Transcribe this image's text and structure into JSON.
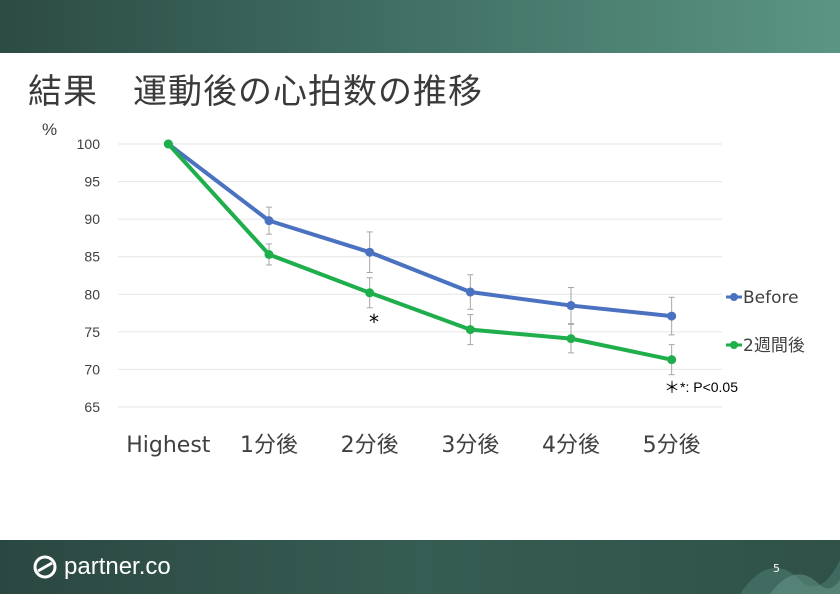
{
  "slide": {
    "title": "結果　運動後の心拍数の推移",
    "page_number": "5",
    "logo_text": "partner.co"
  },
  "colors": {
    "before": "#4a72c0",
    "after": "#1fae4c",
    "grid": "#e6e6e6",
    "error_bar": "#a6a6a6"
  },
  "chart_data": {
    "type": "line",
    "ylabel": "%",
    "ylim": [
      65,
      100
    ],
    "yticks": [
      65,
      70,
      75,
      80,
      85,
      90,
      95,
      100
    ],
    "categories": [
      "Highest",
      "1分後",
      "2分後",
      "3分後",
      "4分後",
      "5分後"
    ],
    "series": [
      {
        "name": "Before",
        "values": [
          100,
          89.8,
          85.6,
          80.3,
          78.5,
          77.1
        ],
        "errors": [
          0,
          1.8,
          2.7,
          2.3,
          2.4,
          2.5
        ]
      },
      {
        "name": "2週間後",
        "values": [
          100,
          85.3,
          80.2,
          75.3,
          74.1,
          71.3
        ],
        "errors": [
          0,
          1.4,
          2.0,
          2.0,
          1.9,
          2.0
        ]
      }
    ],
    "annotations": [
      {
        "text": "*",
        "category": "2分後"
      },
      {
        "text": "＊",
        "category": "5分後"
      }
    ],
    "note": "*: P<0.05",
    "grid": true,
    "legend_position": "right"
  }
}
